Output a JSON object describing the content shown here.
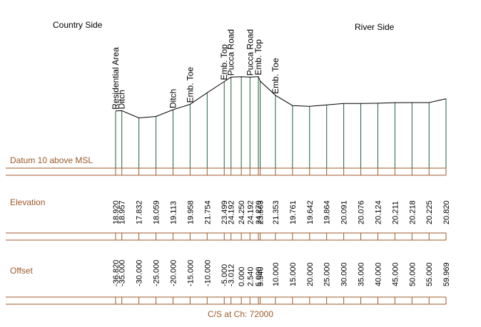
{
  "headings": {
    "left": "Country Side",
    "right": "River Side"
  },
  "datum_label": "Datum 10 above MSL",
  "row_labels": {
    "elevation": "Elevation",
    "offset": "Offset"
  },
  "footer": "C/S at Ch: 72000",
  "colors": {
    "axis": "#9c5a2b",
    "vertical": "#1e5e3a",
    "profile": "#000000"
  },
  "chart_data": {
    "type": "line",
    "datum": 10,
    "x": [
      -36.82,
      -35.0,
      -30.0,
      -25.0,
      -20.0,
      -15.0,
      -10.0,
      -5.0,
      -3.012,
      0.0,
      2.54,
      5.0,
      5.54,
      10.0,
      15.0,
      20.0,
      25.0,
      30.0,
      35.0,
      40.0,
      45.0,
      50.0,
      55.0,
      59.969
    ],
    "y": [
      18.92,
      18.957,
      17.832,
      18.059,
      19.113,
      19.958,
      21.754,
      23.499,
      24.192,
      24.25,
      24.192,
      24.27,
      23.563,
      21.353,
      19.761,
      19.642,
      19.864,
      20.091,
      20.076,
      20.124,
      20.211,
      20.218,
      20.225,
      20.82
    ],
    "elevation_labels": [
      "18.920",
      "18.957",
      "17.832",
      "18.059",
      "19.113",
      "19.958",
      "21.754",
      "23.499",
      "24.192",
      "24.250",
      "24.192",
      "24.270",
      "23.563",
      "21.353",
      "19.761",
      "19.642",
      "19.864",
      "20.091",
      "20.076",
      "20.124",
      "20.211",
      "20.218",
      "20.225",
      "20.820"
    ],
    "offset_labels": [
      "-36.820",
      "-35.000",
      "-30.000",
      "-25.000",
      "-20.000",
      "-15.000",
      "-10.000",
      "-5.000",
      "-3.012",
      "0.000",
      "2.540",
      "5.000",
      "5.540",
      "10.000",
      "15.000",
      "20.000",
      "25.000",
      "30.000",
      "35.000",
      "40.000",
      "45.000",
      "50.000",
      "55.000",
      "59.969"
    ],
    "annotations": [
      {
        "x": -36.82,
        "text": "Residential Area"
      },
      {
        "x": -35.0,
        "text": "Ditch"
      },
      {
        "x": -20.0,
        "text": "Ditch"
      },
      {
        "x": -15.0,
        "text": "Emb. Toe"
      },
      {
        "x": -5.0,
        "text": "Emb. Top"
      },
      {
        "x": -3.012,
        "text": "Pucca Road"
      },
      {
        "x": 2.54,
        "text": "Pucca Road"
      },
      {
        "x": 5.0,
        "text": "Emb. Top"
      },
      {
        "x": 10.0,
        "text": "Emb. Toe"
      }
    ]
  }
}
